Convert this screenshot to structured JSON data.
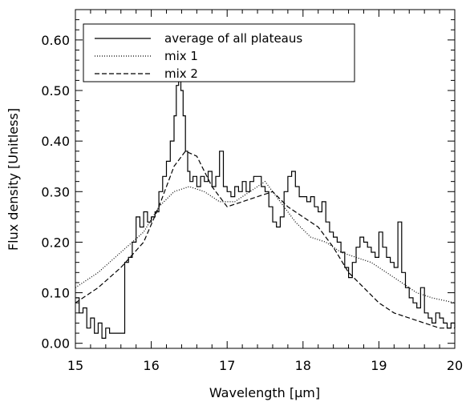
{
  "chart_data": {
    "type": "line",
    "xlabel": "Wavelength [μm]",
    "ylabel": "Flux density [Unitless]",
    "xlim": [
      15,
      20
    ],
    "ylim": [
      -0.01,
      0.66
    ],
    "x_ticks": [
      "15",
      "16",
      "17",
      "18",
      "19",
      "20"
    ],
    "y_ticks": [
      "0.00",
      "0.10",
      "0.20",
      "0.30",
      "0.40",
      "0.50",
      "0.60"
    ],
    "grid": false,
    "legend_position": "top-left",
    "series": [
      {
        "name": "average of all plateaus",
        "style": "solid-step",
        "color": "#000000",
        "x": [
          15.0,
          15.05,
          15.1,
          15.15,
          15.2,
          15.25,
          15.3,
          15.35,
          15.4,
          15.45,
          15.5,
          15.55,
          15.6,
          15.65,
          15.7,
          15.75,
          15.8,
          15.85,
          15.9,
          15.95,
          16.0,
          16.05,
          16.1,
          16.15,
          16.2,
          16.25,
          16.3,
          16.33,
          16.36,
          16.39,
          16.42,
          16.45,
          16.48,
          16.51,
          16.55,
          16.6,
          16.65,
          16.7,
          16.75,
          16.8,
          16.85,
          16.9,
          16.95,
          17.0,
          17.05,
          17.1,
          17.15,
          17.2,
          17.25,
          17.3,
          17.35,
          17.4,
          17.45,
          17.5,
          17.55,
          17.6,
          17.65,
          17.7,
          17.75,
          17.8,
          17.85,
          17.9,
          17.95,
          18.0,
          18.05,
          18.1,
          18.15,
          18.2,
          18.25,
          18.3,
          18.35,
          18.4,
          18.45,
          18.5,
          18.55,
          18.6,
          18.65,
          18.7,
          18.75,
          18.8,
          18.85,
          18.9,
          18.95,
          19.0,
          19.05,
          19.1,
          19.15,
          19.2,
          19.25,
          19.3,
          19.35,
          19.4,
          19.45,
          19.5,
          19.55,
          19.6,
          19.65,
          19.7,
          19.75,
          19.8,
          19.85,
          19.9,
          19.95,
          20.0
        ],
        "y": [
          0.09,
          0.06,
          0.07,
          0.03,
          0.05,
          0.02,
          0.04,
          0.01,
          0.03,
          0.02,
          0.02,
          0.02,
          0.02,
          0.16,
          0.17,
          0.2,
          0.25,
          0.23,
          0.26,
          0.24,
          0.25,
          0.26,
          0.3,
          0.33,
          0.36,
          0.4,
          0.45,
          0.51,
          0.55,
          0.5,
          0.45,
          0.38,
          0.34,
          0.32,
          0.33,
          0.31,
          0.33,
          0.32,
          0.34,
          0.31,
          0.33,
          0.38,
          0.31,
          0.3,
          0.29,
          0.31,
          0.3,
          0.32,
          0.3,
          0.32,
          0.33,
          0.33,
          0.31,
          0.3,
          0.27,
          0.24,
          0.23,
          0.25,
          0.3,
          0.33,
          0.34,
          0.31,
          0.29,
          0.29,
          0.28,
          0.29,
          0.27,
          0.26,
          0.28,
          0.24,
          0.22,
          0.21,
          0.2,
          0.18,
          0.15,
          0.13,
          0.16,
          0.19,
          0.21,
          0.2,
          0.19,
          0.18,
          0.17,
          0.22,
          0.19,
          0.17,
          0.16,
          0.15,
          0.24,
          0.14,
          0.11,
          0.09,
          0.08,
          0.07,
          0.11,
          0.06,
          0.05,
          0.04,
          0.06,
          0.05,
          0.04,
          0.03,
          0.04,
          0.03
        ]
      },
      {
        "name": "mix 1",
        "style": "dotted",
        "color": "#000000",
        "x": [
          15.0,
          15.3,
          15.6,
          15.9,
          16.1,
          16.3,
          16.5,
          16.7,
          16.9,
          17.1,
          17.3,
          17.5,
          17.7,
          17.9,
          18.1,
          18.3,
          18.5,
          18.7,
          18.9,
          19.1,
          19.3,
          19.5,
          19.7,
          20.0
        ],
        "y": [
          0.11,
          0.14,
          0.18,
          0.22,
          0.27,
          0.3,
          0.31,
          0.3,
          0.28,
          0.28,
          0.3,
          0.32,
          0.28,
          0.24,
          0.21,
          0.2,
          0.18,
          0.17,
          0.16,
          0.14,
          0.12,
          0.1,
          0.09,
          0.08
        ]
      },
      {
        "name": "mix 2",
        "style": "dashed",
        "color": "#000000",
        "x": [
          15.0,
          15.3,
          15.6,
          15.9,
          16.1,
          16.3,
          16.45,
          16.6,
          16.8,
          17.0,
          17.2,
          17.4,
          17.6,
          17.8,
          18.0,
          18.2,
          18.4,
          18.6,
          18.8,
          19.0,
          19.2,
          19.4,
          19.6,
          19.8,
          20.0
        ],
        "y": [
          0.08,
          0.11,
          0.15,
          0.2,
          0.27,
          0.35,
          0.38,
          0.37,
          0.31,
          0.27,
          0.28,
          0.29,
          0.3,
          0.27,
          0.25,
          0.23,
          0.19,
          0.14,
          0.11,
          0.08,
          0.06,
          0.05,
          0.04,
          0.03,
          0.03
        ]
      }
    ]
  }
}
